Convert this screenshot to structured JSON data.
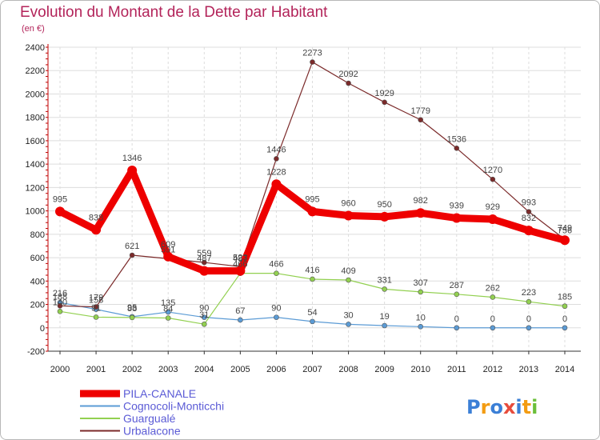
{
  "title": "Evolution du Montant de la Dette par Habitant",
  "subtitle": "(en €)",
  "logo_text": "Proxiti",
  "chart_data": {
    "type": "line",
    "title": "Evolution du Montant de la Dette par Habitant",
    "ylabel": "(en €)",
    "x": [
      "2000",
      "2001",
      "2002",
      "2003",
      "2004",
      "2005",
      "2006",
      "2007",
      "2008",
      "2009",
      "2010",
      "2011",
      "2012",
      "2013",
      "2014"
    ],
    "ylim": [
      -200,
      2400
    ],
    "yticks": [
      -200,
      0,
      200,
      400,
      600,
      800,
      1000,
      1200,
      1400,
      1600,
      1800,
      2000,
      2200,
      2400
    ],
    "grid": true,
    "legend_position": "bottom-left",
    "series": [
      {
        "name": "PILA-CANALE",
        "color": "#ee0000",
        "values": [
          995,
          838,
          1346,
          609,
          487,
          487,
          1228,
          995,
          960,
          950,
          982,
          939,
          929,
          832,
          749
        ],
        "labels": [
          "995",
          "838",
          "1346",
          "609",
          "487",
          "487",
          "1228",
          "995",
          "960",
          "950",
          "982",
          "939",
          "929",
          "832",
          "749"
        ]
      },
      {
        "name": "Cognocoli-Monticchi",
        "color": "#5b9bd5",
        "values": [
          216,
          158,
          95,
          135,
          90,
          67,
          90,
          54,
          30,
          19,
          10,
          0,
          0,
          0,
          0
        ],
        "labels": [
          "216",
          "158",
          "95",
          "135",
          "90",
          "67",
          "90",
          "54",
          "30",
          "19",
          "10",
          "0",
          "0",
          "0",
          "0"
        ]
      },
      {
        "name": "Guargualé",
        "color": "#92d050",
        "values": [
          140,
          91,
          88,
          84,
          31,
          466,
          466,
          416,
          409,
          331,
          307,
          287,
          262,
          223,
          185
        ],
        "labels": [
          "140",
          "91",
          "88",
          "84",
          "31",
          "466",
          "466",
          "416",
          "409",
          "331",
          "307",
          "287",
          "262",
          "223",
          "185"
        ]
      },
      {
        "name": "Urbalacone",
        "color": "#7b2a2a",
        "values": [
          188,
          179,
          621,
          591,
          559,
          523,
          1446,
          2273,
          2092,
          1929,
          1779,
          1536,
          1270,
          993,
          756
        ],
        "labels": [
          "188",
          "179",
          "621",
          "591",
          "559",
          "523",
          "1446",
          "2273",
          "2092",
          "1929",
          "1779",
          "1536",
          "1270",
          "993",
          "756"
        ]
      }
    ]
  }
}
